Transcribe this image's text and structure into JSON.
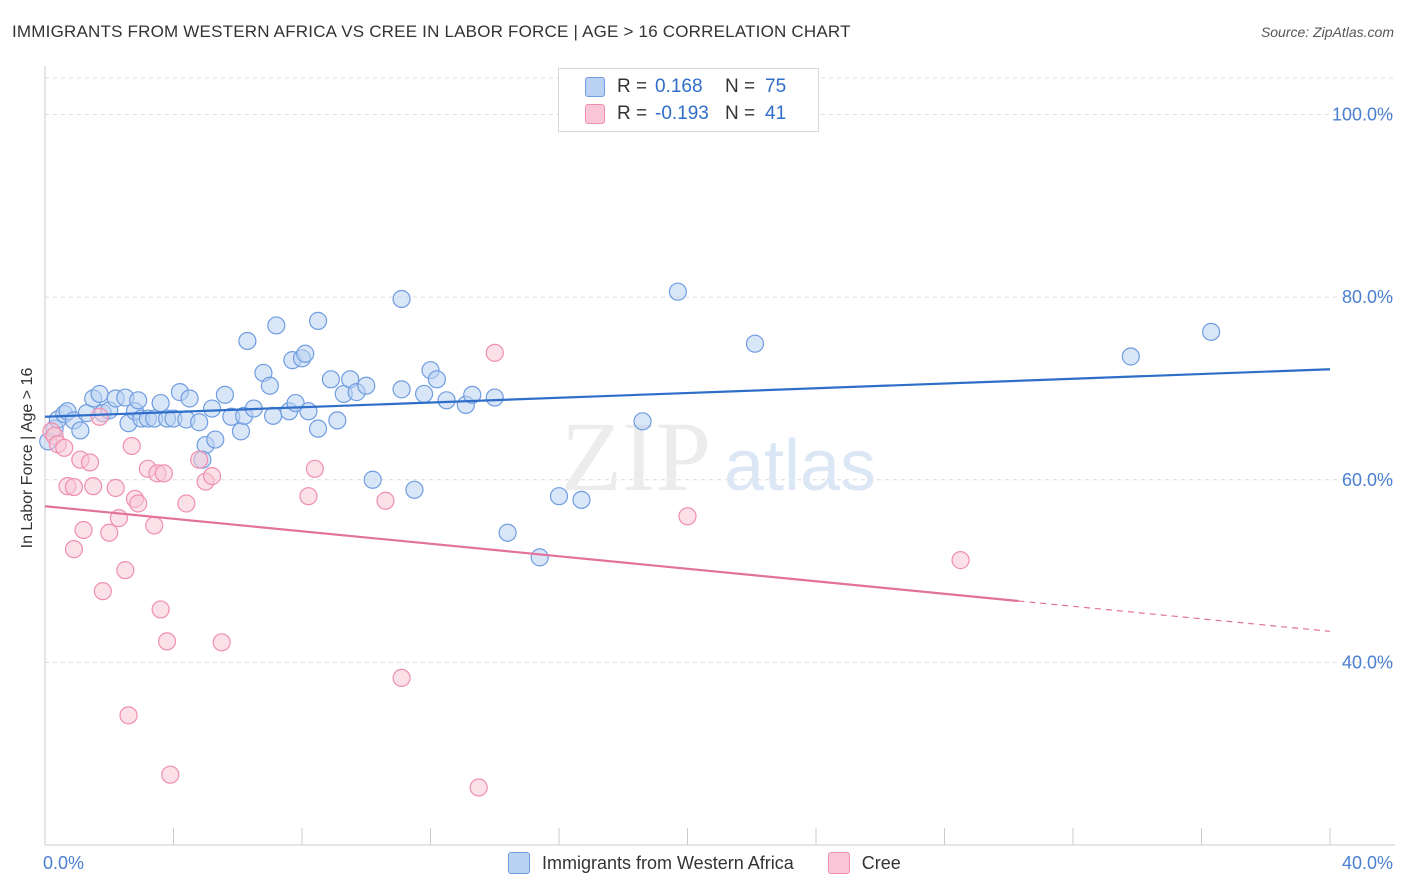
{
  "header": {
    "title": "IMMIGRANTS FROM WESTERN AFRICA VS CREE IN LABOR FORCE | AGE > 16 CORRELATION CHART",
    "source": "Source: ZipAtlas.com"
  },
  "watermark": {
    "zip": "ZIP",
    "atlas": "atlas"
  },
  "legend": {
    "rows": [
      {
        "r_label": "R =",
        "r_value": "0.168",
        "n_label": "N =",
        "n_value": "75",
        "color": "#6f9de0"
      },
      {
        "r_label": "R =",
        "r_value": "-0.193",
        "n_label": "N =",
        "n_value": "41",
        "color": "#ef8fb0"
      }
    ]
  },
  "bottom_legend": {
    "items": [
      {
        "label": "Immigrants from Western Africa"
      },
      {
        "label": "Cree"
      }
    ]
  },
  "chart_data": {
    "type": "scatter",
    "title": "IMMIGRANTS FROM WESTERN AFRICA VS CREE IN LABOR FORCE | AGE > 16 CORRELATION CHART",
    "ylabel": "In Labor Force | Age > 16",
    "xlabel": "",
    "xlim": [
      0,
      40
    ],
    "ylim": [
      20,
      104
    ],
    "x_tick_labels": [
      "0.0%",
      "40.0%"
    ],
    "y_ticks": [
      40,
      60,
      80,
      100
    ],
    "y_tick_labels": [
      "40.0%",
      "60.0%",
      "80.0%",
      "100.0%"
    ],
    "grid": true,
    "legend_position": "top-center",
    "series": [
      {
        "name": "Immigrants from Western Africa",
        "color": "#6f9de0",
        "fill": "#b9d1f3",
        "trend": {
          "x": [
            0,
            40
          ],
          "y": [
            66.9,
            72.1
          ],
          "dashed_from": null
        },
        "points": [
          [
            0.1,
            64.2
          ],
          [
            0.3,
            65.6
          ],
          [
            0.4,
            66.6
          ],
          [
            0.6,
            67.2
          ],
          [
            0.7,
            67.5
          ],
          [
            0.9,
            66.5
          ],
          [
            1.1,
            65.4
          ],
          [
            1.3,
            67.3
          ],
          [
            1.5,
            68.9
          ],
          [
            1.7,
            69.4
          ],
          [
            1.8,
            67.3
          ],
          [
            2.0,
            67.6
          ],
          [
            2.2,
            68.9
          ],
          [
            2.5,
            69.0
          ],
          [
            2.6,
            66.2
          ],
          [
            2.8,
            67.5
          ],
          [
            2.9,
            68.7
          ],
          [
            3.0,
            66.7
          ],
          [
            3.2,
            66.7
          ],
          [
            3.4,
            66.7
          ],
          [
            3.6,
            68.4
          ],
          [
            3.8,
            66.7
          ],
          [
            4.0,
            66.7
          ],
          [
            4.2,
            69.6
          ],
          [
            4.4,
            66.6
          ],
          [
            4.5,
            68.9
          ],
          [
            4.8,
            66.3
          ],
          [
            5.0,
            63.8
          ],
          [
            4.9,
            62.2
          ],
          [
            5.2,
            67.8
          ],
          [
            5.3,
            64.4
          ],
          [
            5.6,
            69.3
          ],
          [
            5.8,
            66.9
          ],
          [
            6.1,
            65.3
          ],
          [
            6.2,
            67.0
          ],
          [
            6.3,
            75.2
          ],
          [
            6.5,
            67.8
          ],
          [
            6.8,
            71.7
          ],
          [
            7.0,
            70.3
          ],
          [
            7.1,
            67.0
          ],
          [
            7.2,
            76.9
          ],
          [
            7.6,
            67.5
          ],
          [
            7.7,
            73.1
          ],
          [
            7.8,
            68.4
          ],
          [
            8.0,
            73.3
          ],
          [
            8.1,
            73.8
          ],
          [
            8.2,
            67.5
          ],
          [
            8.5,
            65.6
          ],
          [
            8.5,
            77.4
          ],
          [
            8.9,
            71.0
          ],
          [
            9.1,
            66.5
          ],
          [
            9.3,
            69.4
          ],
          [
            9.5,
            71.0
          ],
          [
            9.7,
            69.6
          ],
          [
            10.0,
            70.3
          ],
          [
            10.2,
            60.0
          ],
          [
            11.1,
            79.8
          ],
          [
            11.1,
            69.9
          ],
          [
            11.5,
            58.9
          ],
          [
            11.8,
            69.4
          ],
          [
            12.0,
            72.0
          ],
          [
            12.2,
            71.0
          ],
          [
            12.5,
            68.7
          ],
          [
            13.1,
            68.2
          ],
          [
            13.3,
            69.3
          ],
          [
            14.0,
            69.0
          ],
          [
            14.4,
            54.2
          ],
          [
            15.4,
            51.5
          ],
          [
            16.0,
            58.2
          ],
          [
            16.7,
            57.8
          ],
          [
            18.6,
            66.4
          ],
          [
            19.7,
            80.6
          ],
          [
            22.1,
            74.9
          ],
          [
            33.8,
            73.5
          ],
          [
            36.3,
            76.2
          ]
        ]
      },
      {
        "name": "Cree",
        "color": "#ef8fb0",
        "fill": "#f8c6d6",
        "trend": {
          "x": [
            0,
            40
          ],
          "y": [
            57.1,
            43.4
          ],
          "dashed_from": 30.3
        },
        "points": [
          [
            0.2,
            65.3
          ],
          [
            0.3,
            64.8
          ],
          [
            0.4,
            63.9
          ],
          [
            0.6,
            63.5
          ],
          [
            0.7,
            59.3
          ],
          [
            0.9,
            59.2
          ],
          [
            0.9,
            52.4
          ],
          [
            1.1,
            62.2
          ],
          [
            1.2,
            54.5
          ],
          [
            1.4,
            61.9
          ],
          [
            1.5,
            59.3
          ],
          [
            1.7,
            66.9
          ],
          [
            1.8,
            47.8
          ],
          [
            2.0,
            54.2
          ],
          [
            2.2,
            59.1
          ],
          [
            2.3,
            55.8
          ],
          [
            2.5,
            50.1
          ],
          [
            2.6,
            34.2
          ],
          [
            2.7,
            63.7
          ],
          [
            2.8,
            57.9
          ],
          [
            2.9,
            57.4
          ],
          [
            3.2,
            61.2
          ],
          [
            3.4,
            55.0
          ],
          [
            3.5,
            60.7
          ],
          [
            3.6,
            45.8
          ],
          [
            3.7,
            60.7
          ],
          [
            3.8,
            42.3
          ],
          [
            3.9,
            27.7
          ],
          [
            4.4,
            57.4
          ],
          [
            4.8,
            62.2
          ],
          [
            5.0,
            59.8
          ],
          [
            5.2,
            60.4
          ],
          [
            5.5,
            42.2
          ],
          [
            8.2,
            58.2
          ],
          [
            8.4,
            61.2
          ],
          [
            10.6,
            57.7
          ],
          [
            11.1,
            38.3
          ],
          [
            13.5,
            26.3
          ],
          [
            14.0,
            73.9
          ],
          [
            20.0,
            56.0
          ],
          [
            28.5,
            51.2
          ]
        ]
      }
    ]
  }
}
